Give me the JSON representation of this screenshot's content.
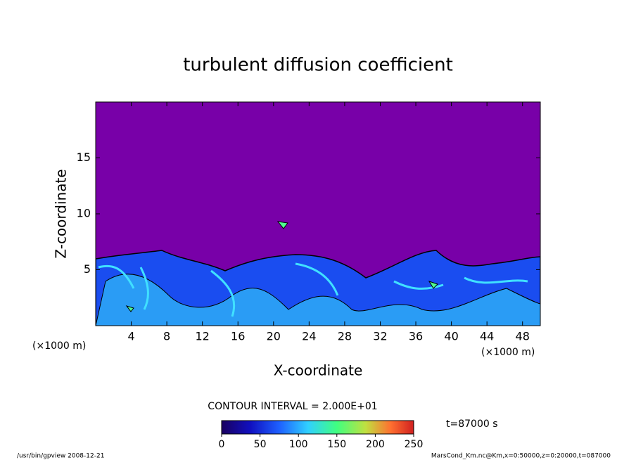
{
  "chart_data": {
    "type": "contour",
    "title": "turbulent diffusion coefficient",
    "xlabel": "X-coordinate",
    "ylabel": "Z-coordinate",
    "axis_unit": "(×1000 m)",
    "xlim": [
      0,
      50
    ],
    "xticks": [
      4,
      8,
      12,
      16,
      20,
      24,
      28,
      32,
      36,
      40,
      44,
      48
    ],
    "ylim": [
      0,
      20
    ],
    "yticks": [
      5,
      10,
      15
    ],
    "background_color": "#7800a8",
    "colorbar": {
      "lim": [
        0,
        250
      ],
      "ticks": [
        0,
        50,
        100,
        150,
        200,
        250
      ]
    },
    "contour_interval": "CONTOUR INTERVAL = 2.000E+01",
    "time_label": "t=87000 s",
    "footer_left": "/usr/bin/gpview  2008-12-21",
    "footer_right": "MarsCond_Km.nc@Km,x=0:50000,z=0:20000,t=087000"
  }
}
